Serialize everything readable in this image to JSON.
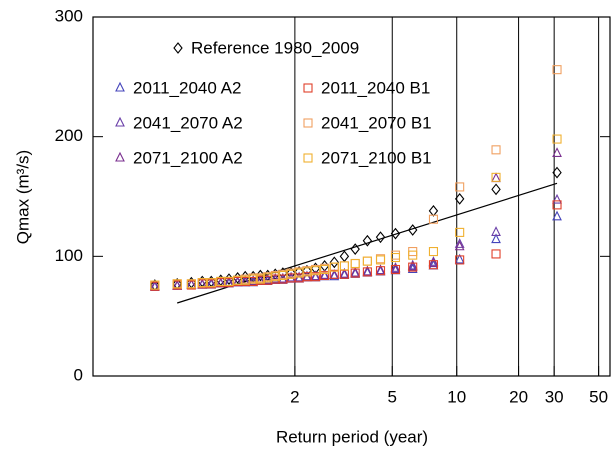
{
  "chart_data": {
    "type": "scatter",
    "x_scale": "gumbel",
    "xlabel": "Return period (year)",
    "ylabel": "Qmax (m³/s)",
    "xlim": [
      1.0007,
      57
    ],
    "ylim": [
      0,
      300
    ],
    "xticks": [
      2,
      5,
      10,
      20,
      30,
      50
    ],
    "yticks": [
      0,
      100,
      200,
      300
    ],
    "x_grid": true,
    "x": [
      31,
      15.5,
      10.33,
      7.75,
      6.2,
      5.17,
      4.43,
      3.88,
      3.44,
      3.1,
      2.82,
      2.58,
      2.38,
      2.21,
      2.07,
      1.94,
      1.82,
      1.72,
      1.63,
      1.55,
      1.48,
      1.41,
      1.35,
      1.29,
      1.24,
      1.19,
      1.15,
      1.11,
      1.07,
      1.03
    ],
    "series": [
      {
        "name": "Reference 1980_2009",
        "color": "#000000",
        "marker": "diamond",
        "values": [
          170,
          156,
          148,
          138,
          122,
          119,
          116,
          113,
          106,
          100,
          95,
          92,
          90,
          88,
          87,
          86,
          86,
          85,
          84,
          84,
          83,
          83,
          82,
          81,
          80,
          79,
          79,
          78,
          77,
          76
        ]
      },
      {
        "name": "2011_2040 A2",
        "color": "#4444bb",
        "marker": "triangle",
        "values": [
          133,
          114,
          97,
          92,
          89,
          88,
          87,
          86,
          85,
          84,
          83,
          83,
          82,
          82,
          81,
          81,
          80,
          80,
          79,
          79,
          78,
          78,
          78,
          77,
          77,
          76,
          76,
          76,
          75,
          75
        ]
      },
      {
        "name": "2041_2070 A2",
        "color": "#6a3fa8",
        "marker": "triangle",
        "values": [
          147,
          120,
          110,
          95,
          92,
          90,
          88,
          87,
          86,
          85,
          84,
          84,
          83,
          83,
          82,
          82,
          81,
          81,
          80,
          80,
          79,
          79,
          78,
          78,
          77,
          77,
          76,
          76,
          75,
          74
        ]
      },
      {
        "name": "2071_2100 A2",
        "color": "#7a2f8f",
        "marker": "triangle",
        "values": [
          186,
          165,
          108,
          94,
          91,
          89,
          88,
          87,
          86,
          85,
          84,
          84,
          83,
          82,
          82,
          81,
          81,
          80,
          80,
          79,
          79,
          78,
          78,
          78,
          77,
          77,
          76,
          76,
          75,
          75
        ]
      },
      {
        "name": "2011_2040 B1",
        "color": "#e0402a",
        "marker": "square",
        "values": [
          143,
          102,
          97,
          93,
          91,
          89,
          88,
          87,
          86,
          85,
          85,
          84,
          83,
          83,
          82,
          82,
          81,
          81,
          80,
          80,
          79,
          79,
          79,
          78,
          78,
          77,
          77,
          76,
          76,
          75
        ]
      },
      {
        "name": "2041_2070 B1",
        "color": "#f0a060",
        "marker": "square",
        "values": [
          256,
          189,
          158,
          131,
          104,
          101,
          98,
          96,
          94,
          92,
          91,
          90,
          89,
          88,
          87,
          86,
          85,
          84,
          83,
          82,
          82,
          81,
          80,
          79,
          79,
          78,
          78,
          77,
          77,
          76
        ]
      },
      {
        "name": "2071_2100 B1",
        "color": "#f0b030",
        "marker": "square",
        "values": [
          198,
          166,
          120,
          104,
          101,
          99,
          97,
          96,
          94,
          92,
          91,
          89,
          88,
          87,
          86,
          85,
          84,
          83,
          82,
          81,
          81,
          80,
          80,
          79,
          79,
          78,
          78,
          77,
          77,
          76
        ]
      }
    ],
    "trend_line": {
      "color": "#000000",
      "x": [
        1.07,
        31
      ],
      "values": [
        61,
        161
      ]
    }
  }
}
